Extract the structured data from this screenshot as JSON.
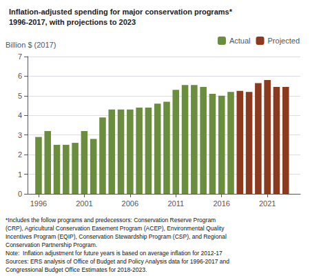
{
  "chart_data": {
    "type": "bar",
    "title": "Inflation-adjusted spending for major conservation programs*",
    "subtitle": "1996-2017, with projections to 2023",
    "ylabel": "Billion $ (2017)",
    "x": [
      1996,
      1997,
      1998,
      1999,
      2000,
      2001,
      2002,
      2003,
      2004,
      2005,
      2006,
      2007,
      2008,
      2009,
      2010,
      2011,
      2012,
      2013,
      2014,
      2015,
      2016,
      2017,
      2018,
      2019,
      2020,
      2021,
      2022,
      2023
    ],
    "series": [
      {
        "name": "Actual",
        "color": "#6b8e3e",
        "values": [
          2.9,
          3.2,
          2.5,
          2.5,
          2.6,
          3.2,
          2.8,
          3.9,
          4.3,
          4.3,
          4.3,
          4.4,
          4.4,
          4.6,
          4.7,
          5.3,
          5.55,
          5.55,
          5.45,
          5.1,
          5.0,
          5.2,
          null,
          null,
          null,
          null,
          null,
          null
        ]
      },
      {
        "name": "Projected",
        "color": "#8b3a1e",
        "values": [
          null,
          null,
          null,
          null,
          null,
          null,
          null,
          null,
          null,
          null,
          null,
          null,
          null,
          null,
          null,
          null,
          null,
          null,
          null,
          null,
          null,
          null,
          5.25,
          5.2,
          5.65,
          5.8,
          5.45,
          5.45
        ]
      }
    ],
    "xlim": [
      1994.8,
      2024.6
    ],
    "xticks": [
      1996,
      2001,
      2006,
      2011,
      2016,
      2021
    ],
    "ylim": [
      0,
      7
    ],
    "yticks": [
      0,
      1,
      2,
      3,
      4,
      5,
      6,
      7
    ],
    "grid": true,
    "legend": "upper right",
    "annotations": [
      "*Includes the follow programs and predecessors: Conservation Reserve Program",
      "(CRP), Agricultural Conservation Easement Program (ACEP), Environmental Quality",
      "Incentives Program (EQIP), Conservation Stewardship Program (CSP), and Regional",
      "Conservation Partnership Program.",
      "Note:  Inflation adjustment for future years is based on average inflation for 2012-17",
      "Sources: ERS analysis of Office of Budget and Policy Analysis data for 1996-2017 and",
      "Congressional Budget Office Estimates for 2018-2023."
    ]
  }
}
